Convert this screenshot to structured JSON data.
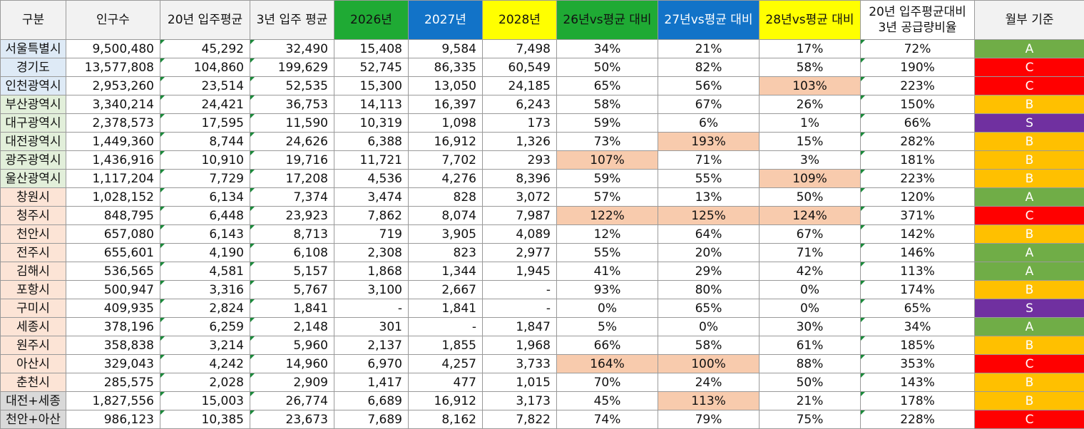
{
  "headers": [
    "구분",
    "인구수",
    "20년 입주평균",
    "3년 입주 평균",
    "2026년",
    "2027년",
    "2028년",
    "26년vs평균 대비",
    "27년vs평균 대비",
    "28년vs평균 대비",
    "20년 입주평균대비\n3년 공급량비율",
    "월부 기준"
  ],
  "colors": {
    "header_green": "#1faa34",
    "header_blue": "#1273c8",
    "header_yellow": "#ffff00",
    "highlight": "#f8cbad",
    "grade_A": "#70ad47",
    "grade_B": "#ffc000",
    "grade_C": "#ff0000",
    "grade_S": "#7030a0"
  },
  "rows": [
    {
      "region": "서울특별시",
      "population": "9,500,480",
      "avg20": "45,292",
      "avg3": "32,490",
      "y2026": "15,408",
      "y2027": "9,584",
      "y2028": "7,498",
      "p26": "34%",
      "p27": "21%",
      "p28": "17%",
      "ratio": "72%",
      "grade": "A"
    },
    {
      "region": "경기도",
      "population": "13,577,808",
      "avg20": "104,860",
      "avg3": "199,629",
      "y2026": "52,745",
      "y2027": "86,335",
      "y2028": "60,549",
      "p26": "50%",
      "p27": "82%",
      "p28": "58%",
      "ratio": "190%",
      "grade": "C"
    },
    {
      "region": "인천광역시",
      "population": "2,953,260",
      "avg20": "23,514",
      "avg3": "52,535",
      "y2026": "15,300",
      "y2027": "13,050",
      "y2028": "24,185",
      "p26": "65%",
      "p27": "56%",
      "p28": "103%",
      "ratio": "223%",
      "grade": "C"
    },
    {
      "region": "부산광역시",
      "population": "3,340,214",
      "avg20": "24,421",
      "avg3": "36,753",
      "y2026": "14,113",
      "y2027": "16,397",
      "y2028": "6,243",
      "p26": "58%",
      "p27": "67%",
      "p28": "26%",
      "ratio": "150%",
      "grade": "B"
    },
    {
      "region": "대구광역시",
      "population": "2,378,573",
      "avg20": "17,595",
      "avg3": "11,590",
      "y2026": "10,319",
      "y2027": "1,098",
      "y2028": "173",
      "p26": "59%",
      "p27": "6%",
      "p28": "1%",
      "ratio": "66%",
      "grade": "S"
    },
    {
      "region": "대전광역시",
      "population": "1,449,360",
      "avg20": "8,744",
      "avg3": "24,626",
      "y2026": "6,388",
      "y2027": "16,912",
      "y2028": "1,326",
      "p26": "73%",
      "p27": "193%",
      "p28": "15%",
      "ratio": "282%",
      "grade": "B"
    },
    {
      "region": "광주광역시",
      "population": "1,436,916",
      "avg20": "10,910",
      "avg3": "19,716",
      "y2026": "11,721",
      "y2027": "7,702",
      "y2028": "293",
      "p26": "107%",
      "p27": "71%",
      "p28": "3%",
      "ratio": "181%",
      "grade": "B"
    },
    {
      "region": "울산광역시",
      "population": "1,117,204",
      "avg20": "7,729",
      "avg3": "17,208",
      "y2026": "4,536",
      "y2027": "4,276",
      "y2028": "8,396",
      "p26": "59%",
      "p27": "55%",
      "p28": "109%",
      "ratio": "223%",
      "grade": "B"
    },
    {
      "region": "창원시",
      "population": "1,028,152",
      "avg20": "6,134",
      "avg3": "7,374",
      "y2026": "3,474",
      "y2027": "828",
      "y2028": "3,072",
      "p26": "57%",
      "p27": "13%",
      "p28": "50%",
      "ratio": "120%",
      "grade": "A"
    },
    {
      "region": "청주시",
      "population": "848,795",
      "avg20": "6,448",
      "avg3": "23,923",
      "y2026": "7,862",
      "y2027": "8,074",
      "y2028": "7,987",
      "p26": "122%",
      "p27": "125%",
      "p28": "124%",
      "ratio": "371%",
      "grade": "C"
    },
    {
      "region": "천안시",
      "population": "657,080",
      "avg20": "6,143",
      "avg3": "8,713",
      "y2026": "719",
      "y2027": "3,905",
      "y2028": "4,089",
      "p26": "12%",
      "p27": "64%",
      "p28": "67%",
      "ratio": "142%",
      "grade": "B"
    },
    {
      "region": "전주시",
      "population": "655,601",
      "avg20": "4,190",
      "avg3": "6,108",
      "y2026": "2,308",
      "y2027": "823",
      "y2028": "2,977",
      "p26": "55%",
      "p27": "20%",
      "p28": "71%",
      "ratio": "146%",
      "grade": "A"
    },
    {
      "region": "김해시",
      "population": "536,565",
      "avg20": "4,581",
      "avg3": "5,157",
      "y2026": "1,868",
      "y2027": "1,344",
      "y2028": "1,945",
      "p26": "41%",
      "p27": "29%",
      "p28": "42%",
      "ratio": "113%",
      "grade": "A"
    },
    {
      "region": "포항시",
      "population": "500,947",
      "avg20": "3,316",
      "avg3": "5,767",
      "y2026": "3,100",
      "y2027": "2,667",
      "y2028": "-",
      "p26": "93%",
      "p27": "80%",
      "p28": "0%",
      "ratio": "174%",
      "grade": "B"
    },
    {
      "region": "구미시",
      "population": "409,935",
      "avg20": "2,824",
      "avg3": "1,841",
      "y2026": "-",
      "y2027": "1,841",
      "y2028": "-",
      "p26": "0%",
      "p27": "65%",
      "p28": "0%",
      "ratio": "65%",
      "grade": "S"
    },
    {
      "region": "세종시",
      "population": "378,196",
      "avg20": "6,259",
      "avg3": "2,148",
      "y2026": "301",
      "y2027": "-",
      "y2028": "1,847",
      "p26": "5%",
      "p27": "0%",
      "p28": "30%",
      "ratio": "34%",
      "grade": "A"
    },
    {
      "region": "원주시",
      "population": "358,838",
      "avg20": "3,214",
      "avg3": "5,960",
      "y2026": "2,137",
      "y2027": "1,855",
      "y2028": "1,968",
      "p26": "66%",
      "p27": "58%",
      "p28": "61%",
      "ratio": "185%",
      "grade": "B"
    },
    {
      "region": "아산시",
      "population": "329,043",
      "avg20": "4,242",
      "avg3": "14,960",
      "y2026": "6,970",
      "y2027": "4,257",
      "y2028": "3,733",
      "p26": "164%",
      "p27": "100%",
      "p28": "88%",
      "ratio": "353%",
      "grade": "C"
    },
    {
      "region": "춘천시",
      "population": "285,575",
      "avg20": "2,028",
      "avg3": "2,909",
      "y2026": "1,417",
      "y2027": "477",
      "y2028": "1,015",
      "p26": "70%",
      "p27": "24%",
      "p28": "50%",
      "ratio": "143%",
      "grade": "B"
    },
    {
      "region": "대전+세종",
      "population": "1,827,556",
      "avg20": "15,003",
      "avg3": "26,774",
      "y2026": "6,689",
      "y2027": "16,912",
      "y2028": "3,173",
      "p26": "45%",
      "p27": "113%",
      "p28": "21%",
      "ratio": "178%",
      "grade": "B"
    },
    {
      "region": "천안+아산",
      "population": "986,123",
      "avg20": "10,385",
      "avg3": "23,673",
      "y2026": "7,689",
      "y2027": "8,162",
      "y2028": "7,822",
      "p26": "74%",
      "p27": "79%",
      "p28": "75%",
      "ratio": "228%",
      "grade": "C"
    }
  ]
}
